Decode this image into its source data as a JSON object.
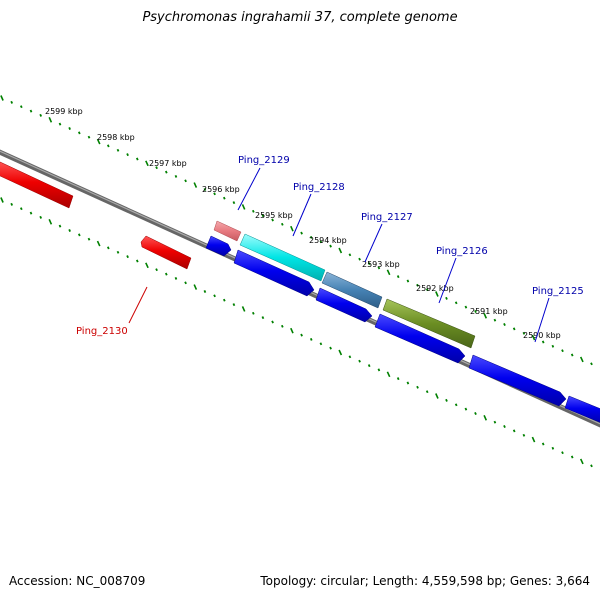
{
  "title": "Psychromonas ingrahamii 37, complete genome",
  "footer": {
    "accession": "Accession: NC_008709",
    "summary": "Topology: circular; Length: 4,559,598 bp; Genes: 3,664"
  },
  "tick_labels": [
    "2599 kbp",
    "2598 kbp",
    "2597 kbp",
    "2596 kbp",
    "2595 kbp",
    "2594 kbp",
    "2593 kbp",
    "2592 kbp",
    "2591 kbp",
    "2590 kbp"
  ],
  "genes": {
    "ping_2125": "Ping_2125",
    "ping_2126": "Ping_2126",
    "ping_2127": "Ping_2127",
    "ping_2128": "Ping_2128",
    "ping_2129": "Ping_2129",
    "ping_2130": "Ping_2130"
  },
  "colors": {
    "backbone": "#777777",
    "tick": "#008000",
    "cds_blue": "#0000ee",
    "gene_red": "#ee0000",
    "gene_pink": "#e87a80",
    "gene_cyan": "#00e5e5",
    "gene_steel": "#4682b4",
    "gene_olive": "#6b8e23",
    "label_blue": "#0000aa",
    "label_red": "#cc0000"
  }
}
